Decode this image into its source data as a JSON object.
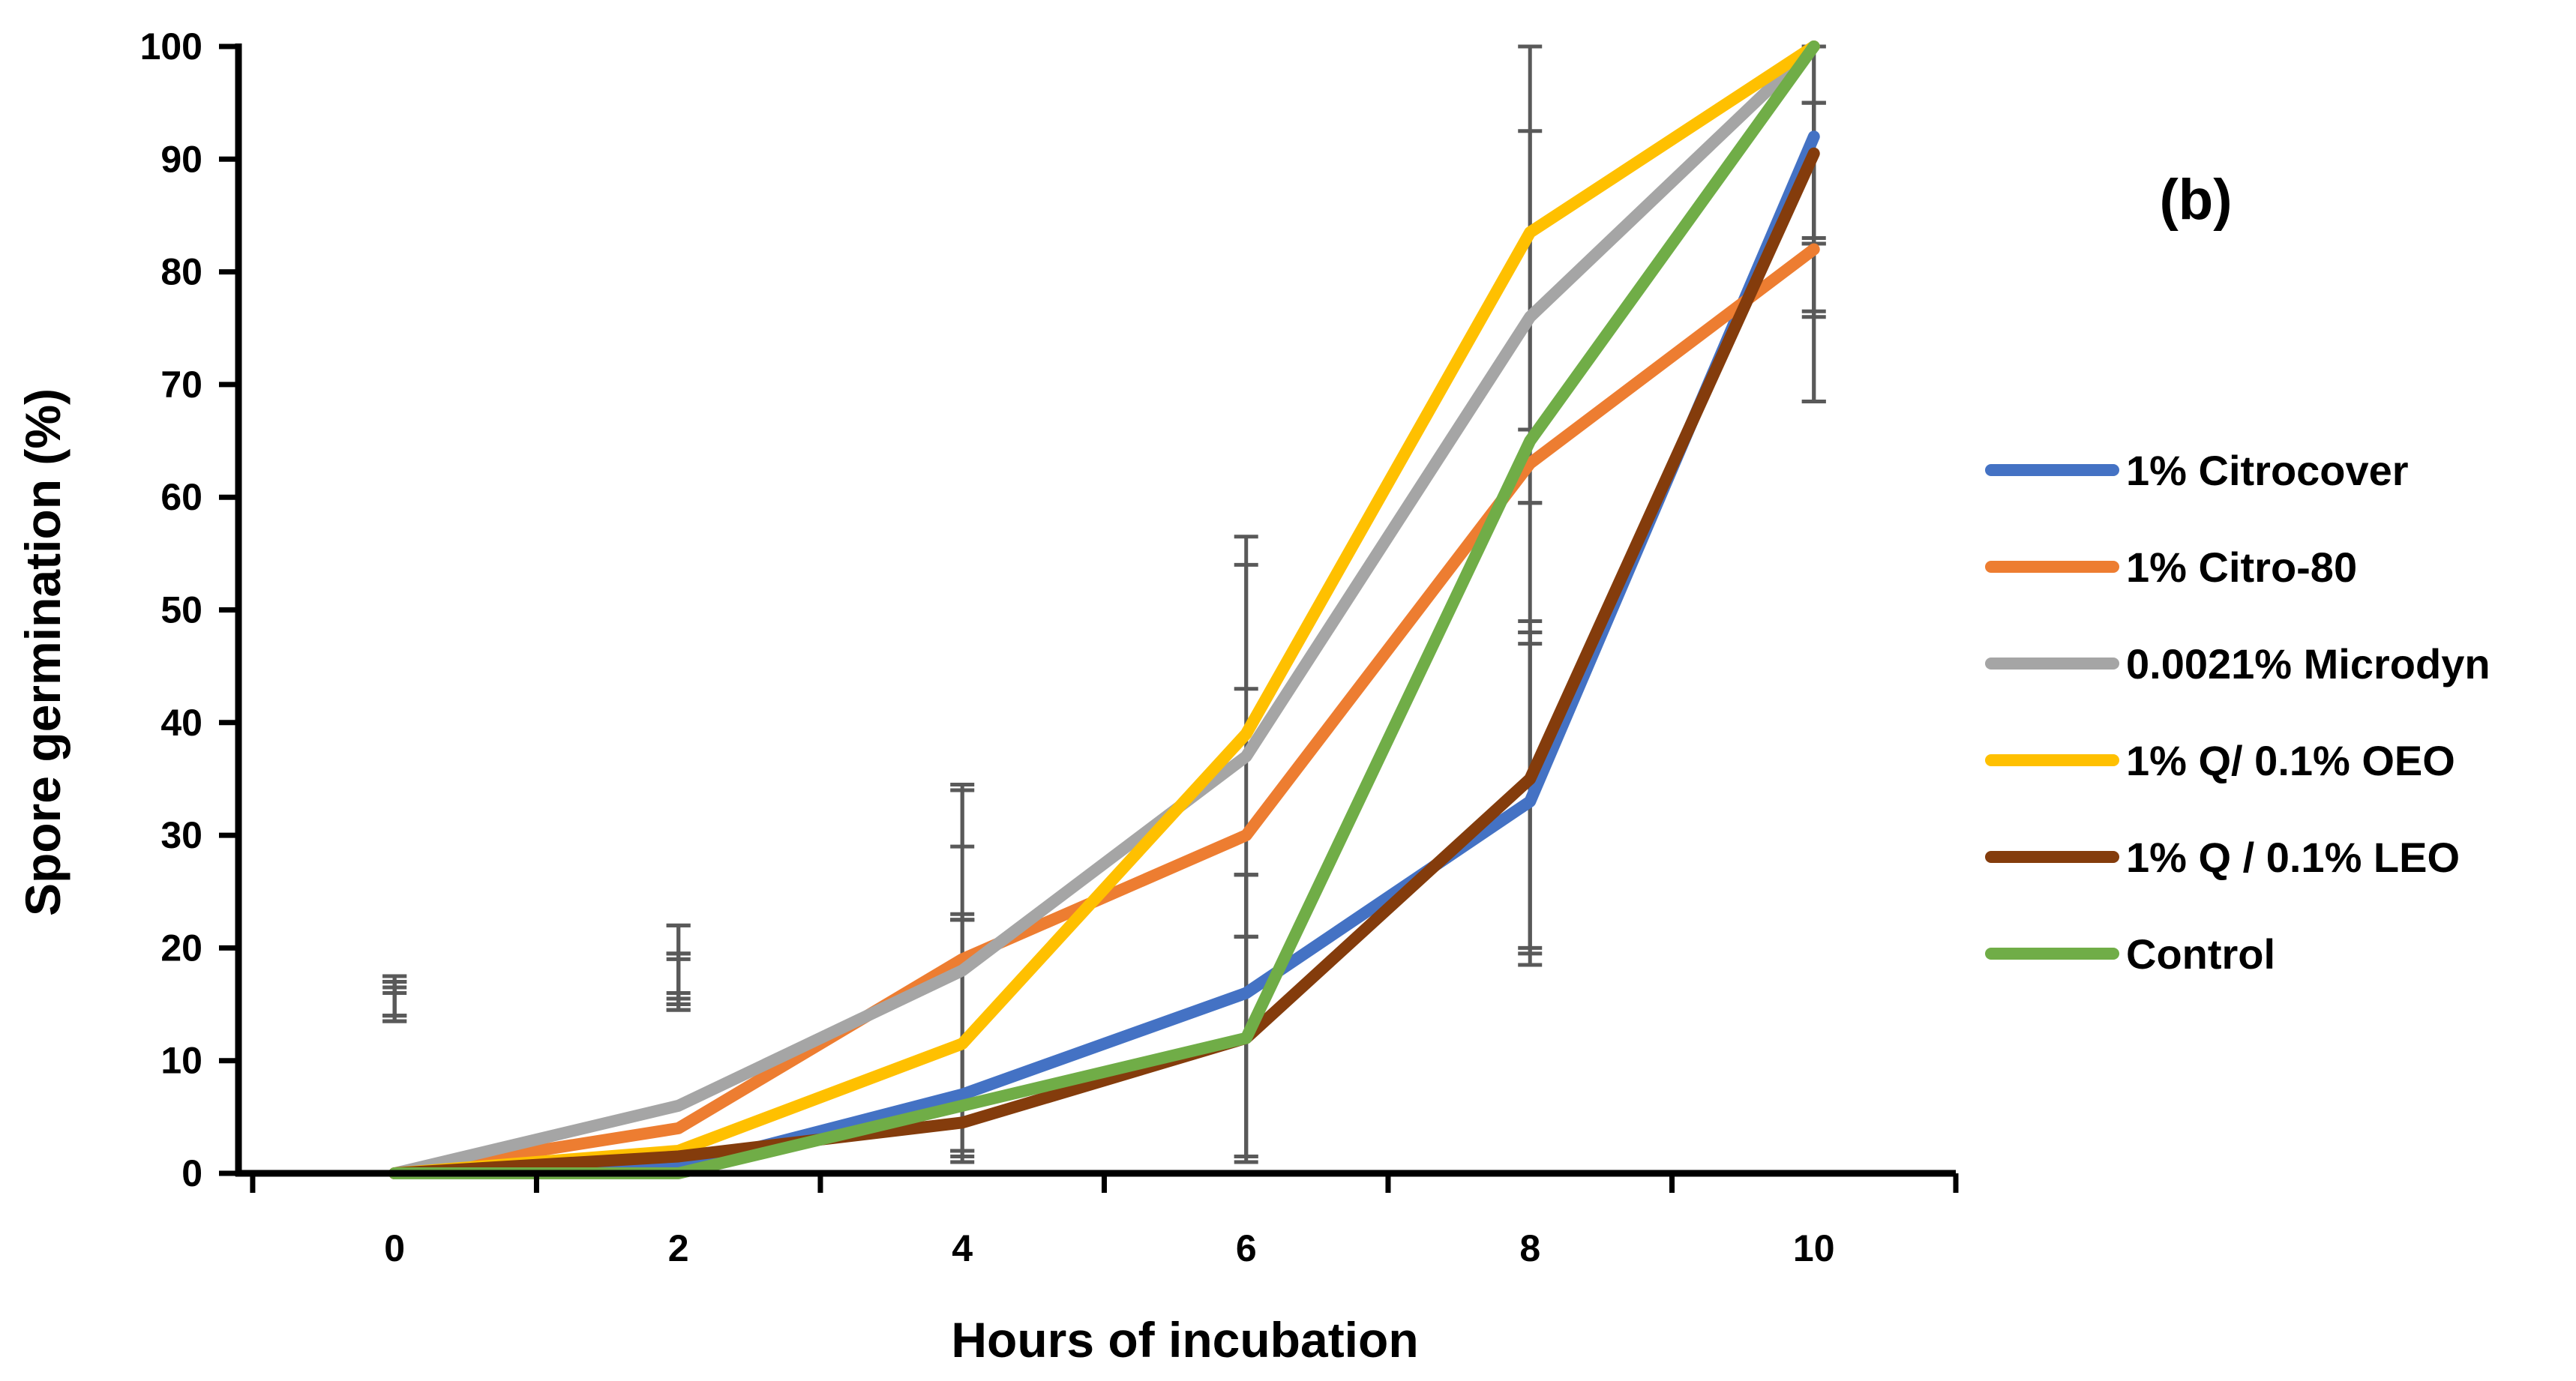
{
  "chart_data": {
    "type": "line",
    "panel_label": "(b)",
    "xlabel": "Hours of incubation",
    "ylabel": "Spore germination (%)",
    "x": [
      0,
      2,
      4,
      6,
      8,
      10
    ],
    "x_tick_labels": [
      "0",
      "2",
      "4",
      "6",
      "8",
      "10"
    ],
    "ylim": [
      0,
      100
    ],
    "y_tick_labels": [
      "0",
      "10",
      "20",
      "30",
      "40",
      "50",
      "60",
      "70",
      "80",
      "90",
      "100"
    ],
    "xlim": [
      -1.1,
      11
    ],
    "grid": false,
    "legend_position": "right",
    "series": [
      {
        "name": "1% Citrocover",
        "color": "#4472C4",
        "values": [
          0,
          0.5,
          7,
          16,
          33,
          92
        ],
        "error_bars": [
          [
            13.5,
            17
          ],
          [
            14.5,
            16
          ],
          [
            1.5,
            2
          ],
          [
            1.5,
            21
          ],
          [
            19.5,
            48
          ],
          [
            76,
            95
          ]
        ]
      },
      {
        "name": "1% Citro-80",
        "color": "#ED7D31",
        "values": [
          0,
          4,
          19,
          30,
          63,
          82
        ],
        "error_bars": [
          [
            16,
            17.5
          ],
          [
            19.5,
            22
          ],
          [
            22.5,
            23
          ],
          [
            21,
            26.5
          ],
          [
            47,
            59.5
          ],
          [
            68.5,
            83
          ]
        ]
      },
      {
        "name": "0.0021% Microdyn",
        "color": "#A5A5A5",
        "values": [
          0,
          6,
          18,
          37,
          76,
          100
        ],
        "error_bars": [
          [
            14,
            16.5
          ],
          [
            15,
            19.5
          ],
          [
            29,
            34.5
          ],
          [
            43,
            54
          ],
          [
            59.5,
            92.5
          ],
          [
            82.5,
            100
          ]
        ]
      },
      {
        "name": "1% Q/ 0.1% OEO",
        "color": "#FFC000",
        "values": [
          0,
          2,
          11.5,
          39,
          83.5,
          100
        ],
        "error_bars": [
          [
            13.5,
            17
          ],
          [
            15.5,
            19
          ],
          [
            22.5,
            34
          ],
          [
            21,
            56.5
          ],
          [
            66,
            100
          ],
          [
            76.5,
            95
          ]
        ]
      },
      {
        "name": "1% Q / 0.1% LEO",
        "color": "#843C0C",
        "values": [
          0,
          1.5,
          4.5,
          12,
          35,
          90.5
        ],
        "error_bars": [
          [
            14,
            17.5
          ],
          [
            14.5,
            22
          ],
          [
            1,
            22.5
          ],
          [
            1.5,
            26.5
          ],
          [
            18.5,
            49
          ],
          [
            68.5,
            95
          ]
        ]
      },
      {
        "name": "Control",
        "color": "#70AD47",
        "values": [
          0,
          0,
          6,
          12,
          65,
          100
        ],
        "error_bars": [
          [
            14,
            17
          ],
          [
            15,
            19.5
          ],
          [
            2,
            22.5
          ],
          [
            1,
            26.5
          ],
          [
            20,
            48
          ],
          [
            82.5,
            100
          ]
        ]
      }
    ]
  }
}
